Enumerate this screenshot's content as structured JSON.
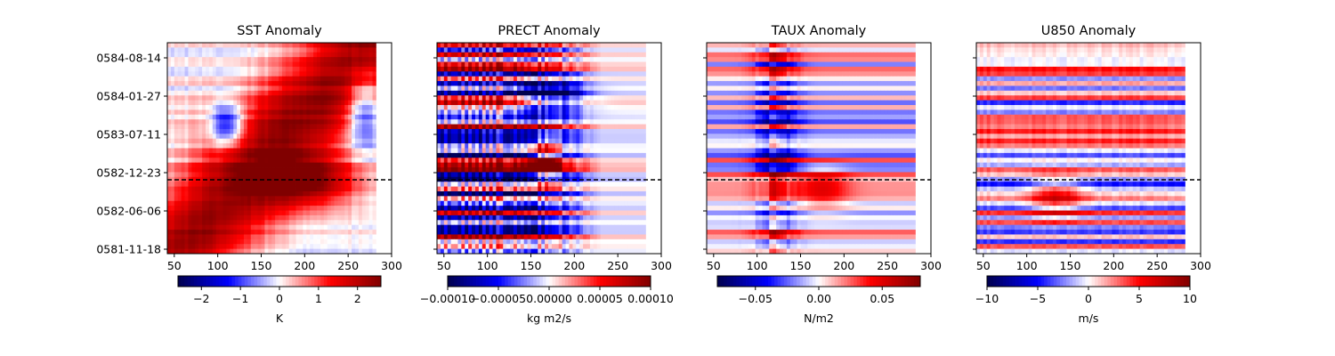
{
  "figure": {
    "width": 1500,
    "height": 400
  },
  "chart_data": [
    {
      "type": "heatmap",
      "title": "SST Anomaly",
      "colormap": "seismic",
      "x_ticks": [
        50,
        100,
        150,
        200,
        250,
        300
      ],
      "xlim": [
        42,
        300
      ],
      "data_x_range": [
        42,
        282
      ],
      "y_tick_labels": [
        "0584-08-14",
        "0584-01-27",
        "0583-07-11",
        "0582-12-23",
        "0582-06-06",
        "0581-11-18"
      ],
      "y_label_visible": true,
      "reference_line": {
        "style": "dashed",
        "color": "#000000",
        "label_position": "between 0582-12-23 and 0582-06-06"
      },
      "colorbar": {
        "label": "K",
        "ticks": [
          "−2",
          "−1",
          "0",
          "1",
          "2"
        ],
        "tick_values": [
          -2,
          -1,
          0,
          1,
          2
        ],
        "range": [
          -2.6,
          2.6
        ]
      },
      "anomaly_pattern": "warm diagonal band rising from lower-center to upper-left; cold patch near x≈100 and x≈270 in upper half"
    },
    {
      "type": "heatmap",
      "title": "PRECT Anomaly",
      "colormap": "seismic",
      "x_ticks": [
        50,
        100,
        150,
        200,
        250,
        300
      ],
      "xlim": [
        42,
        300
      ],
      "data_x_range": [
        42,
        282
      ],
      "y_tick_labels": [
        "0584-08-14",
        "0584-01-27",
        "0583-07-11",
        "0582-12-23",
        "0582-06-06",
        "0581-11-18"
      ],
      "y_label_visible": false,
      "reference_line": {
        "style": "dashed",
        "color": "#000000"
      },
      "colorbar": {
        "label": "kg m2/s",
        "ticks": [
          "−0.00010",
          "−0.00005",
          "0.00000",
          "0.00005",
          "0.00010"
        ],
        "tick_values": [
          -0.0001,
          -5e-05,
          0,
          5e-05,
          0.0001
        ],
        "range": [
          -0.0001,
          0.0001
        ]
      },
      "anomaly_pattern": "strong alternating stripes west of 150; wet patch near x≈160 around reference line"
    },
    {
      "type": "heatmap",
      "title": "TAUX Anomaly",
      "colormap": "seismic",
      "x_ticks": [
        50,
        100,
        150,
        200,
        250,
        300
      ],
      "xlim": [
        42,
        300
      ],
      "data_x_range": [
        42,
        282
      ],
      "y_tick_labels": [
        "0584-08-14",
        "0584-01-27",
        "0583-07-11",
        "0582-12-23",
        "0582-06-06",
        "0581-11-18"
      ],
      "y_label_visible": false,
      "reference_line": {
        "style": "dashed",
        "color": "#000000"
      },
      "colorbar": {
        "label": "N/m2",
        "ticks": [
          "−0.05",
          "0.00",
          "0.05"
        ],
        "tick_values": [
          -0.05,
          0,
          0.05
        ],
        "range": [
          -0.08,
          0.08
        ]
      },
      "anomaly_pattern": "horizontal stripes, strong near x≈100–130"
    },
    {
      "type": "heatmap",
      "title": "U850 Anomaly",
      "colormap": "seismic",
      "x_ticks": [
        50,
        100,
        150,
        200,
        250,
        300
      ],
      "xlim": [
        42,
        300
      ],
      "data_x_range": [
        42,
        282
      ],
      "y_tick_labels": [
        "0584-08-14",
        "0584-01-27",
        "0583-07-11",
        "0582-12-23",
        "0582-06-06",
        "0581-11-18"
      ],
      "y_label_visible": false,
      "reference_line": {
        "style": "dashed",
        "color": "#000000"
      },
      "colorbar": {
        "label": "m/s",
        "ticks": [
          "−10",
          "−5",
          "0",
          "5",
          "10"
        ],
        "tick_values": [
          -10,
          -5,
          0,
          5,
          10
        ],
        "range": [
          -10,
          10
        ]
      },
      "anomaly_pattern": "horizontal stripes; westerly patch near x≈150 below reference line"
    }
  ]
}
